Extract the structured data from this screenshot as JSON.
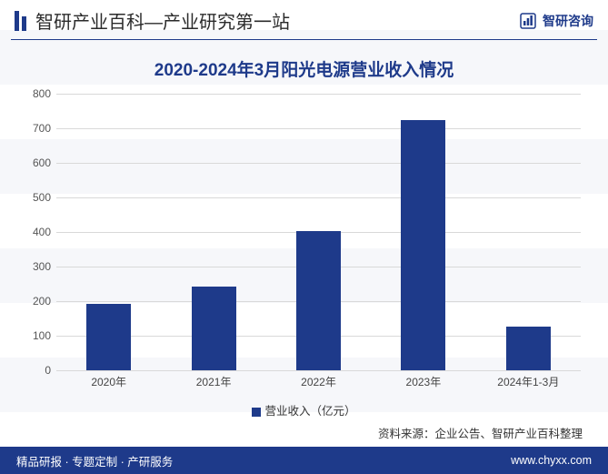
{
  "header": {
    "title": "智研产业百科—产业研究第一站",
    "logo_text": "智研咨询"
  },
  "chart": {
    "type": "bar",
    "title": "2020-2024年3月阳光电源营业收入情况",
    "categories": [
      "2020年",
      "2021年",
      "2022年",
      "2023年",
      "2024年1-3月"
    ],
    "values": [
      193,
      241,
      403,
      723,
      126
    ],
    "bar_color": "#1e3a8a",
    "ylim": [
      0,
      800
    ],
    "ytick_step": 100,
    "yticks": [
      0,
      100,
      200,
      300,
      400,
      500,
      600,
      700,
      800
    ],
    "bar_width_pct": 8.5,
    "grid_color": "#d9d9d9",
    "background_color": "#ffffff",
    "axis_label_fontsize": 12,
    "title_fontsize": 19,
    "title_color": "#1e3a8a"
  },
  "legend": {
    "label": "营业收入（亿元）",
    "swatch_color": "#1e3a8a"
  },
  "source": {
    "prefix": "资料来源：",
    "text": "企业公告、智研产业百科整理"
  },
  "footer": {
    "left": "精品研报 · 专题定制 · 产研服务",
    "right": "www.chyxx.com"
  }
}
